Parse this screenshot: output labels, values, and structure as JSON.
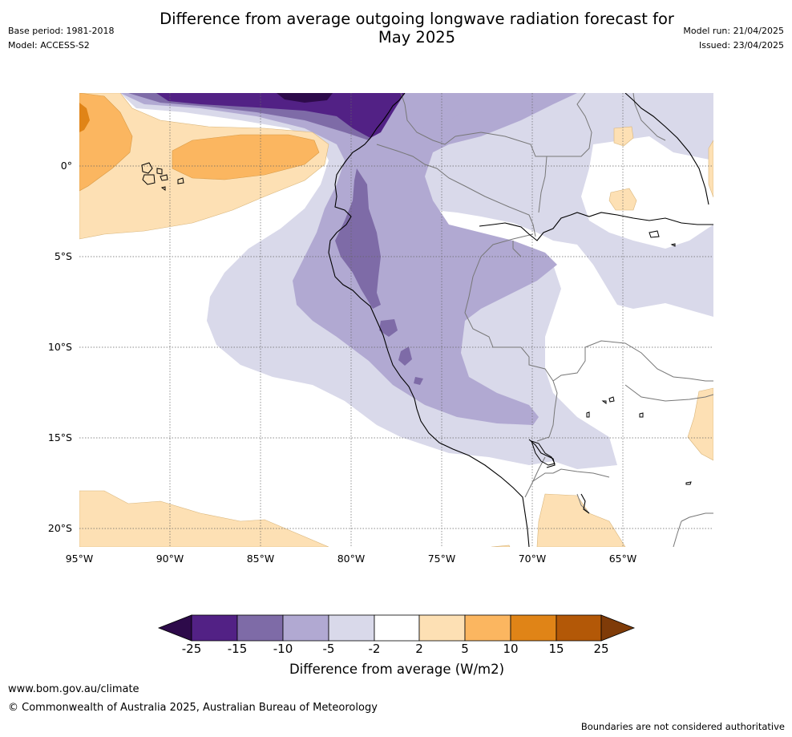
{
  "header": {
    "title_line1": "Difference from average outgoing longwave radiation forecast for",
    "title_line2": "May 2025",
    "base_period": "Base period: 1981-2018",
    "model": "Model: ACCESS-S2",
    "model_run": "Model run: 21/04/2025",
    "issued": "Issued: 23/04/2025"
  },
  "map": {
    "lat_labels": [
      "0°",
      "5°S",
      "10°S",
      "15°S",
      "20°S"
    ],
    "lon_labels": [
      "95°W",
      "90°W",
      "85°W",
      "80°W",
      "75°W",
      "70°W",
      "65°W"
    ],
    "extent": {
      "lon_min": -95,
      "lon_max": -60,
      "lat_min": -21,
      "lat_max": 4
    }
  },
  "colorbar": {
    "ticks": [
      "-25",
      "-15",
      "-10",
      "-5",
      "-2",
      "2",
      "5",
      "10",
      "15",
      "25"
    ],
    "label": "Difference from average (W/m2)",
    "colors": {
      "below_-25": "#2d0a4a",
      "-25_-15": "#522185",
      "-15_-10": "#7e6ba7",
      "-10_-5": "#b1a9d2",
      "-5_-2": "#d9d9ea",
      "-2_2": "#ffffff",
      "2_5": "#fde0b4",
      "5_10": "#fbb660",
      "10_15": "#e08417",
      "15_25": "#b35807",
      "above_25": "#7f3b08"
    }
  },
  "footer": {
    "url": "www.bom.gov.au/climate",
    "copyright": "© Commonwealth of Australia 2025, Australian Bureau of Meteorology",
    "disclaimer": "Boundaries are not considered authoritative"
  }
}
